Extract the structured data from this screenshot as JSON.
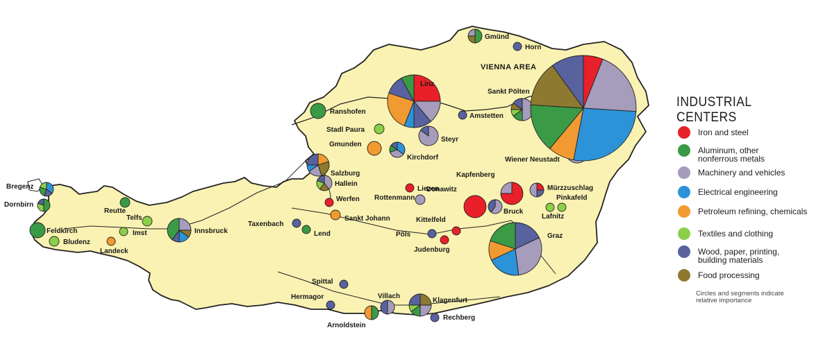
{
  "legend": {
    "title": "INDUSTRIAL CENTERS",
    "items": [
      {
        "key": "iron",
        "label": "Iron and steel",
        "color": "#e8202a"
      },
      {
        "key": "alu",
        "label": "Aluminum, other\n  nonferrous metals",
        "color": "#3a9a46"
      },
      {
        "key": "mach",
        "label": "Machinery and vehicles",
        "color": "#a69cbc"
      },
      {
        "key": "elec",
        "label": "Electrical engineering",
        "color": "#2c93d8"
      },
      {
        "key": "petro",
        "label": "Petroleum refining, chemicals",
        "color": "#f29a32"
      },
      {
        "key": "tex",
        "label": "Textiles and clothing",
        "color": "#8ccf4a"
      },
      {
        "key": "wood",
        "label": "Wood, paper, printing,\n  building materials",
        "color": "#58629e"
      },
      {
        "key": "food",
        "label": "Food processing",
        "color": "#8d7a30"
      }
    ],
    "note": "Circles and segments indicate\nrelative importance"
  },
  "region_labels": [
    "VIENNA AREA"
  ],
  "cities": [
    {
      "name": "Gmünd",
      "r": 10,
      "seg": [
        [
          "alu",
          0.5
        ],
        [
          "food",
          0.25
        ],
        [
          "mach",
          0.25
        ]
      ],
      "lx": 14,
      "ly": 4
    },
    {
      "name": "Horn",
      "r": 6,
      "seg": [
        [
          "wood",
          1
        ]
      ],
      "lx": 11,
      "ly": 4
    },
    {
      "name": "Linz",
      "r": 38,
      "seg": [
        [
          "iron",
          0.25
        ],
        [
          "mach",
          0.14
        ],
        [
          "wood",
          0.11
        ],
        [
          "elec",
          0.06
        ],
        [
          "petro",
          0.24
        ],
        [
          "wood",
          0.12
        ],
        [
          "alu",
          0.08
        ]
      ],
      "lx": 9,
      "ly": -22
    },
    {
      "name": "Sankt Pölten",
      "r": 16,
      "seg": [
        [
          "mach",
          0.5
        ],
        [
          "alu",
          0.15
        ],
        [
          "tex",
          0.1
        ],
        [
          "food",
          0.1
        ],
        [
          "wood",
          0.15
        ]
      ],
      "lx": -50,
      "ly": -23
    },
    {
      "name": "Amstetten",
      "r": 6,
      "seg": [
        [
          "wood",
          1
        ]
      ],
      "lx": 10,
      "ly": 4
    },
    {
      "name": "Ranshofen",
      "r": 11,
      "seg": [
        [
          "alu",
          1
        ]
      ],
      "lx": 17,
      "ly": 4
    },
    {
      "name": "Steyr",
      "r": 14,
      "seg": [
        [
          "mach",
          0.85
        ],
        [
          "wood",
          0.15
        ]
      ],
      "lx": 18,
      "ly": 8
    },
    {
      "name": "Stadl Paura",
      "r": 7,
      "seg": [
        [
          "tex",
          1
        ]
      ],
      "lx": -76,
      "ly": 4
    },
    {
      "name": "Gmunden",
      "r": 10,
      "seg": [
        [
          "petro",
          1
        ]
      ],
      "lx": -65,
      "ly": -3
    },
    {
      "name": "Kirchdorf",
      "r": 11,
      "seg": [
        [
          "elec",
          0.35
        ],
        [
          "mach",
          0.35
        ],
        [
          "alu",
          0.15
        ],
        [
          "wood",
          0.15
        ]
      ],
      "lx": 14,
      "ly": 14
    },
    {
      "name": "Salzburg",
      "r": 16,
      "seg": [
        [
          "petro",
          0.2
        ],
        [
          "food",
          0.25
        ],
        [
          "mach",
          0.2
        ],
        [
          "elec",
          0.1
        ],
        [
          "wood",
          0.25
        ]
      ],
      "lx": 18,
      "ly": 15
    },
    {
      "name": "Hallein",
      "r": 11,
      "seg": [
        [
          "mach",
          0.4
        ],
        [
          "food",
          0.2
        ],
        [
          "tex",
          0.2
        ],
        [
          "wood",
          0.2
        ]
      ],
      "lx": 15,
      "ly": 4
    },
    {
      "name": "Liezen",
      "r": 6,
      "seg": [
        [
          "iron",
          1
        ]
      ],
      "lx": 11,
      "ly": 4
    },
    {
      "name": "Werfen",
      "r": 6,
      "seg": [
        [
          "iron",
          1
        ]
      ],
      "lx": 10,
      "ly": -2
    },
    {
      "name": "Rottenmann",
      "r": 7,
      "seg": [
        [
          "mach",
          1
        ]
      ],
      "lx": -66,
      "ly": 0
    },
    {
      "name": "Sankt Johann",
      "r": 7,
      "seg": [
        [
          "petro",
          1
        ]
      ],
      "lx": 13,
      "ly": 8
    },
    {
      "name": "Donawitz",
      "r": 16,
      "seg": [
        [
          "iron",
          1
        ]
      ],
      "lx": -70,
      "ly": -22
    },
    {
      "name": "Kapfenberg",
      "r": 16,
      "seg": [
        [
          "iron",
          0.75
        ],
        [
          "mach",
          0.25
        ]
      ],
      "lx": -80,
      "ly": -24
    },
    {
      "name": "Bruck",
      "r": 10,
      "seg": [
        [
          "mach",
          0.6
        ],
        [
          "wood",
          0.4
        ]
      ],
      "lx": 12,
      "ly": 10
    },
    {
      "name": "Mürzzuschlag",
      "r": 10,
      "seg": [
        [
          "iron",
          0.25
        ],
        [
          "wood",
          0.25
        ],
        [
          "mach",
          0.5
        ]
      ],
      "lx": 15,
      "ly": 0
    },
    {
      "name": "Pinkafeld",
      "r": 6,
      "seg": [
        [
          "tex",
          1
        ]
      ],
      "lx": -8,
      "ly": -11
    },
    {
      "name": "Lafnitz",
      "r": 6,
      "seg": [
        [
          "tex",
          1
        ]
      ],
      "lx": -12,
      "ly": 16
    },
    {
      "name": "Wiener Neustadt",
      "r": 17,
      "seg": [
        [
          "mach",
          0.7
        ],
        [
          "alu",
          0.3
        ]
      ],
      "lx": -104,
      "ly": 15
    },
    {
      "name": "Kittelfeld",
      "r": 6,
      "seg": [
        [
          "iron",
          1
        ]
      ],
      "lx": -58,
      "ly": -13
    },
    {
      "name": "Pöls",
      "r": 6,
      "seg": [
        [
          "wood",
          1
        ]
      ],
      "lx": -52,
      "ly": 4
    },
    {
      "name": "Judenburg",
      "r": 6,
      "seg": [
        [
          "iron",
          1
        ]
      ],
      "lx": -44,
      "ly": 17
    },
    {
      "name": "Graz",
      "r": 38,
      "seg": [
        [
          "wood",
          0.18
        ],
        [
          "mach",
          0.3
        ],
        [
          "elec",
          0.2
        ],
        [
          "petro",
          0.12
        ],
        [
          "alu",
          0.2
        ]
      ],
      "lx": 46,
      "ly": -16
    },
    {
      "name": "Bregenz",
      "r": 10,
      "seg": [
        [
          "elec",
          0.35
        ],
        [
          "wood",
          0.2
        ],
        [
          "alu",
          0.25
        ],
        [
          "tex",
          0.2
        ]
      ],
      "lx": -58,
      "ly": -1
    },
    {
      "name": "Dornbirn",
      "r": 9,
      "seg": [
        [
          "alu",
          0.5
        ],
        [
          "tex",
          0.3
        ],
        [
          "wood",
          0.2
        ]
      ],
      "lx": -57,
      "ly": 2
    },
    {
      "name": "Feldkirch",
      "r": 11,
      "seg": [
        [
          "alu",
          1
        ]
      ],
      "lx": 13,
      "ly": 4
    },
    {
      "name": "Bludenz",
      "r": 7,
      "seg": [
        [
          "tex",
          1
        ]
      ],
      "lx": 13,
      "ly": 4
    },
    {
      "name": "Reutte",
      "r": 7,
      "seg": [
        [
          "alu",
          1
        ]
      ],
      "lx": -30,
      "ly": 15
    },
    {
      "name": "Telfs",
      "r": 7,
      "seg": [
        [
          "tex",
          1
        ]
      ],
      "lx": -30,
      "ly": -2
    },
    {
      "name": "Imst",
      "r": 6,
      "seg": [
        [
          "tex",
          1
        ]
      ],
      "lx": 13,
      "ly": 5
    },
    {
      "name": "Landeck",
      "r": 6,
      "seg": [
        [
          "petro",
          1
        ]
      ],
      "lx": -16,
      "ly": 17
    },
    {
      "name": "Innsbruck",
      "r": 17,
      "seg": [
        [
          "mach",
          0.25
        ],
        [
          "food",
          0.1
        ],
        [
          "elec",
          0.15
        ],
        [
          "wood",
          0.1
        ],
        [
          "alu",
          0.4
        ]
      ],
      "lx": 22,
      "ly": 4
    },
    {
      "name": "Taxenbach",
      "r": 6,
      "seg": [
        [
          "wood",
          1
        ]
      ],
      "lx": -70,
      "ly": 4
    },
    {
      "name": "Lend",
      "r": 6,
      "seg": [
        [
          "alu",
          1
        ]
      ],
      "lx": 11,
      "ly": 9
    },
    {
      "name": "Spittal",
      "r": 6,
      "seg": [
        [
          "wood",
          1
        ]
      ],
      "lx": -46,
      "ly": -1
    },
    {
      "name": "Hermagor",
      "r": 6,
      "seg": [
        [
          "wood",
          1
        ]
      ],
      "lx": -57,
      "ly": -9
    },
    {
      "name": "Villach",
      "r": 10,
      "seg": [
        [
          "mach",
          0.5
        ],
        [
          "wood",
          0.5
        ]
      ],
      "lx": -14,
      "ly": -13
    },
    {
      "name": "Arnoldstein",
      "r": 10,
      "seg": [
        [
          "alu",
          0.5
        ],
        [
          "petro",
          0.5
        ]
      ],
      "lx": -64,
      "ly": 21
    },
    {
      "name": "Klagenfurt",
      "r": 16,
      "seg": [
        [
          "food",
          0.25
        ],
        [
          "mach",
          0.25
        ],
        [
          "alu",
          0.15
        ],
        [
          "tex",
          0.1
        ],
        [
          "wood",
          0.25
        ]
      ],
      "lx": 18,
      "ly": -4
    },
    {
      "name": "Rechberg",
      "r": 6,
      "seg": [
        [
          "wood",
          1
        ]
      ],
      "lx": 12,
      "ly": 3
    },
    {
      "name": "VIENNA AREA",
      "r": 76,
      "seg": [
        [
          "iron",
          0.06
        ],
        [
          "mach",
          0.2
        ],
        [
          "elec",
          0.27
        ],
        [
          "petro",
          0.08
        ],
        [
          "alu",
          0.15
        ],
        [
          "food",
          0.14
        ],
        [
          "wood",
          0.1
        ]
      ],
      "lx": 0,
      "ly": 0,
      "noLabel": true
    }
  ]
}
